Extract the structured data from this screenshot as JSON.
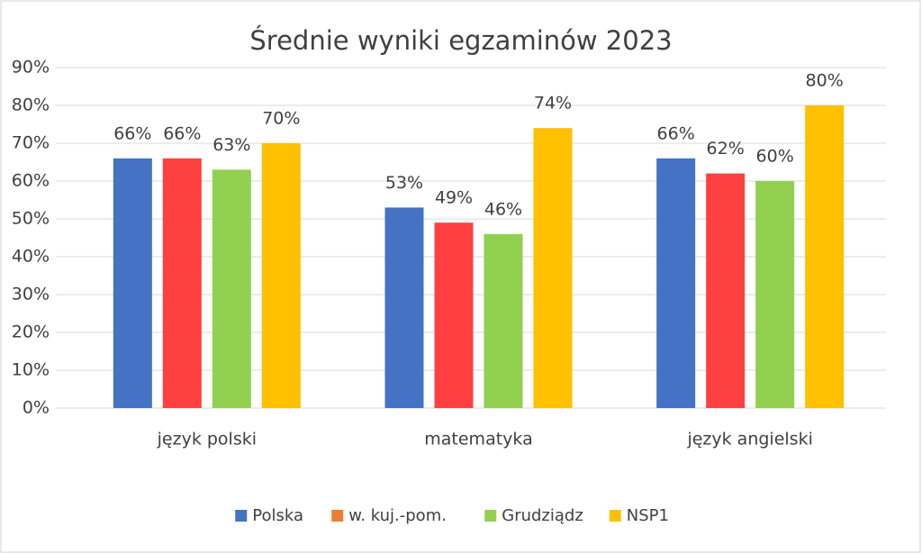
{
  "chart_data": {
    "type": "bar",
    "title": "Średnie wyniki egzaminów 2023",
    "categories": [
      "język polski",
      "matematyka",
      "język angielski"
    ],
    "series": [
      {
        "name": "Polska",
        "color": "#4472c4",
        "legend_color": "#4472c4",
        "values": [
          66,
          53,
          66
        ],
        "value_labels": [
          "66%",
          "53%",
          "66%"
        ]
      },
      {
        "name": "w. kuj.-pom.",
        "color": "#ff4040",
        "legend_color": "#ed7d31",
        "values": [
          66,
          49,
          62
        ],
        "value_labels": [
          "66%",
          "49%",
          "62%"
        ]
      },
      {
        "name": "Grudziądz",
        "color": "#92d050",
        "legend_color": "#92d050",
        "values": [
          63,
          46,
          60
        ],
        "value_labels": [
          "63%",
          "46%",
          "60%"
        ]
      },
      {
        "name": "NSP1",
        "color": "#ffc000",
        "legend_color": "#ffc000",
        "values": [
          70,
          74,
          80
        ],
        "value_labels": [
          "70%",
          "74%",
          "80%"
        ]
      }
    ],
    "ylim": [
      0,
      90
    ],
    "yticks": [
      {
        "value": 0,
        "label": "0%"
      },
      {
        "value": 10,
        "label": "10%"
      },
      {
        "value": 20,
        "label": "20%"
      },
      {
        "value": 30,
        "label": "30%"
      },
      {
        "value": 40,
        "label": "40%"
      },
      {
        "value": 50,
        "label": "50%"
      },
      {
        "value": 60,
        "label": "60%"
      },
      {
        "value": 70,
        "label": "70%"
      },
      {
        "value": 80,
        "label": "80%"
      },
      {
        "value": 90,
        "label": "90%"
      }
    ],
    "grid": true,
    "legend": "bottom"
  }
}
